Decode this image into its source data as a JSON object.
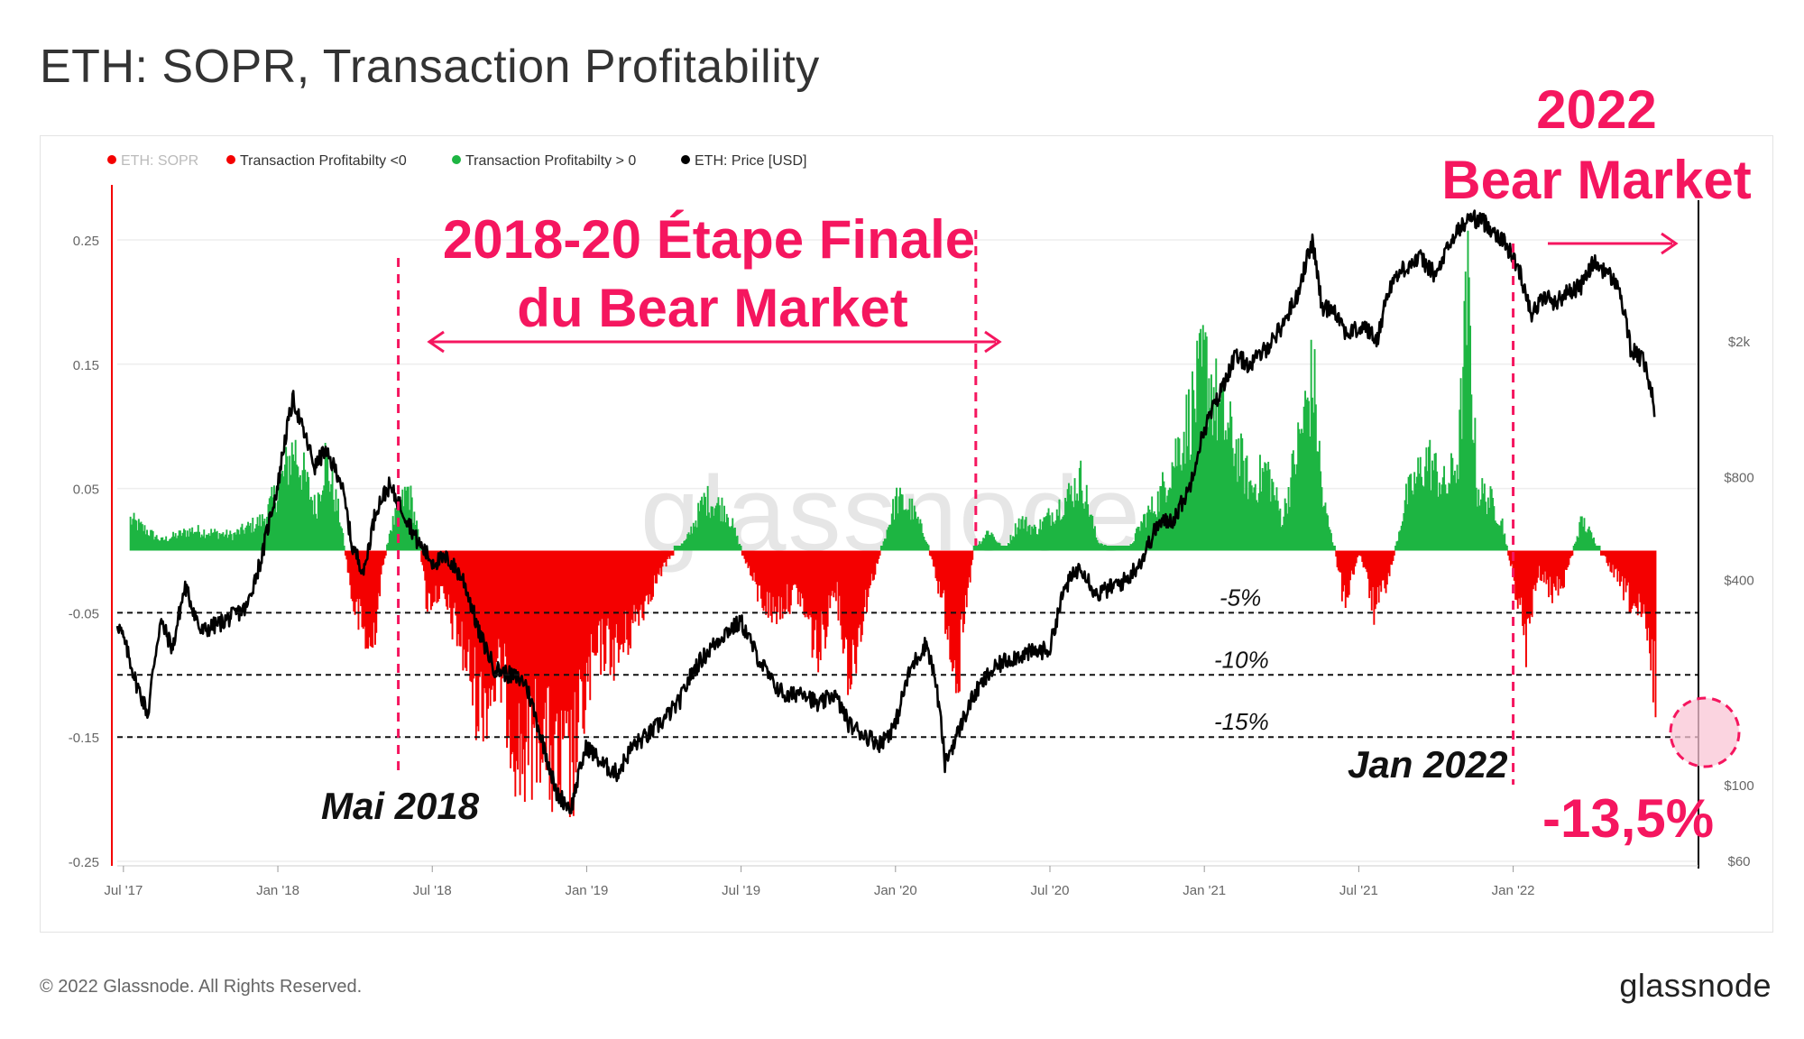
{
  "title": "ETH: SOPR, Transaction Profitability",
  "footer": {
    "copyright": "© 2022 Glassnode. All Rights Reserved.",
    "brand": "glassnode"
  },
  "watermark": "glassnode",
  "colors": {
    "green": "#1db542",
    "red": "#f40000",
    "price": "#000000",
    "accent": "#f5165f",
    "grid": "#eeeeee",
    "axis": "#666666"
  },
  "chart_data": {
    "type": "area",
    "title": "ETH: SOPR, Transaction Profitability",
    "legend": [
      {
        "label": "ETH: SOPR",
        "color": "#f40000",
        "muted": true
      },
      {
        "label": "Transaction Profitabilty <0",
        "color": "#f40000"
      },
      {
        "label": "Transaction Profitabilty > 0",
        "color": "#1db542"
      },
      {
        "label": "ETH: Price [USD]",
        "color": "#000000"
      }
    ],
    "x_ticks": [
      {
        "label": "Jul '17",
        "t": 2017.5
      },
      {
        "label": "Jan '18",
        "t": 2018.0
      },
      {
        "label": "Jul '18",
        "t": 2018.5
      },
      {
        "label": "Jan '19",
        "t": 2019.0
      },
      {
        "label": "Jul '19",
        "t": 2019.5
      },
      {
        "label": "Jan '20",
        "t": 2020.0
      },
      {
        "label": "Jul '20",
        "t": 2020.5
      },
      {
        "label": "Jan '21",
        "t": 2021.0
      },
      {
        "label": "Jul '21",
        "t": 2021.5
      },
      {
        "label": "Jan '22",
        "t": 2022.0
      }
    ],
    "x_range": [
      2017.48,
      2022.6
    ],
    "y_left": {
      "ticks": [
        "0.25",
        "0.15",
        "0.05",
        "-0.05",
        "-0.15",
        "-0.25"
      ],
      "values": [
        0.25,
        0.15,
        0.05,
        -0.05,
        -0.15,
        -0.25
      ],
      "range": [
        -0.25,
        0.3
      ]
    },
    "y_right": {
      "ticks": [
        "$2k",
        "$800",
        "$400",
        "$100",
        "$60"
      ],
      "values": [
        2000,
        800,
        400,
        100,
        60
      ],
      "scale": "log",
      "range": [
        60,
        6000
      ]
    },
    "profitability_keypoints": [
      [
        2017.52,
        0.03
      ],
      [
        2017.62,
        0.01
      ],
      [
        2017.72,
        0.02
      ],
      [
        2017.85,
        0.015
      ],
      [
        2017.95,
        0.03
      ],
      [
        2018.0,
        0.06
      ],
      [
        2018.05,
        0.1
      ],
      [
        2018.12,
        0.04
      ],
      [
        2018.15,
        0.09
      ],
      [
        2018.2,
        0.03
      ],
      [
        2018.24,
        -0.05
      ],
      [
        2018.3,
        -0.1
      ],
      [
        2018.33,
        -0.03
      ],
      [
        2018.36,
        0.02
      ],
      [
        2018.42,
        0.06
      ],
      [
        2018.45,
        0.02
      ],
      [
        2018.48,
        -0.05
      ],
      [
        2018.52,
        -0.04
      ],
      [
        2018.58,
        -0.08
      ],
      [
        2018.65,
        -0.15
      ],
      [
        2018.72,
        -0.12
      ],
      [
        2018.78,
        -0.2
      ],
      [
        2018.85,
        -0.17
      ],
      [
        2018.9,
        -0.22
      ],
      [
        2018.95,
        -0.21
      ],
      [
        2019.0,
        -0.13
      ],
      [
        2019.05,
        -0.09
      ],
      [
        2019.1,
        -0.1
      ],
      [
        2019.15,
        -0.07
      ],
      [
        2019.22,
        -0.03
      ],
      [
        2019.28,
        0.0
      ],
      [
        2019.32,
        0.01
      ],
      [
        2019.38,
        0.05
      ],
      [
        2019.45,
        0.04
      ],
      [
        2019.5,
        0.0
      ],
      [
        2019.55,
        -0.04
      ],
      [
        2019.6,
        -0.06
      ],
      [
        2019.68,
        -0.04
      ],
      [
        2019.75,
        -0.1
      ],
      [
        2019.8,
        -0.03
      ],
      [
        2019.85,
        -0.12
      ],
      [
        2019.9,
        -0.05
      ],
      [
        2019.95,
        0.0
      ],
      [
        2020.0,
        0.05
      ],
      [
        2020.05,
        0.04
      ],
      [
        2020.1,
        0.01
      ],
      [
        2020.15,
        -0.05
      ],
      [
        2020.2,
        -0.12
      ],
      [
        2020.25,
        0.0
      ],
      [
        2020.3,
        0.02
      ],
      [
        2020.35,
        0.0
      ],
      [
        2020.4,
        0.03
      ],
      [
        2020.45,
        0.02
      ],
      [
        2020.55,
        0.05
      ],
      [
        2020.6,
        0.07
      ],
      [
        2020.65,
        0.01
      ],
      [
        2020.7,
        0.0
      ],
      [
        2020.75,
        0.0
      ],
      [
        2020.8,
        0.03
      ],
      [
        2020.85,
        0.05
      ],
      [
        2020.9,
        0.09
      ],
      [
        2020.95,
        0.13
      ],
      [
        2021.0,
        0.18
      ],
      [
        2021.05,
        0.13
      ],
      [
        2021.1,
        0.1
      ],
      [
        2021.15,
        0.06
      ],
      [
        2021.2,
        0.08
      ],
      [
        2021.25,
        0.03
      ],
      [
        2021.3,
        0.1
      ],
      [
        2021.35,
        0.17
      ],
      [
        2021.38,
        0.05
      ],
      [
        2021.42,
        0.0
      ],
      [
        2021.45,
        -0.05
      ],
      [
        2021.5,
        0.0
      ],
      [
        2021.55,
        -0.06
      ],
      [
        2021.6,
        -0.02
      ],
      [
        2021.65,
        0.05
      ],
      [
        2021.72,
        0.09
      ],
      [
        2021.78,
        0.06
      ],
      [
        2021.82,
        0.09
      ],
      [
        2021.85,
        0.25
      ],
      [
        2021.88,
        0.06
      ],
      [
        2021.92,
        0.05
      ],
      [
        2021.96,
        0.03
      ],
      [
        2022.0,
        -0.03
      ],
      [
        2022.04,
        -0.09
      ],
      [
        2022.08,
        -0.02
      ],
      [
        2022.12,
        -0.04
      ],
      [
        2022.16,
        -0.03
      ],
      [
        2022.22,
        0.03
      ],
      [
        2022.26,
        0.01
      ],
      [
        2022.3,
        -0.01
      ],
      [
        2022.36,
        -0.04
      ],
      [
        2022.42,
        -0.07
      ],
      [
        2022.46,
        -0.135
      ]
    ],
    "price_keypoints": [
      [
        2017.48,
        300
      ],
      [
        2017.54,
        200
      ],
      [
        2017.58,
        160
      ],
      [
        2017.62,
        300
      ],
      [
        2017.66,
        250
      ],
      [
        2017.7,
        380
      ],
      [
        2017.75,
        280
      ],
      [
        2017.82,
        300
      ],
      [
        2017.9,
        330
      ],
      [
        2017.95,
        470
      ],
      [
        2018.0,
        750
      ],
      [
        2018.05,
        1350
      ],
      [
        2018.08,
        1100
      ],
      [
        2018.12,
        850
      ],
      [
        2018.15,
        950
      ],
      [
        2018.2,
        800
      ],
      [
        2018.24,
        500
      ],
      [
        2018.28,
        420
      ],
      [
        2018.32,
        650
      ],
      [
        2018.36,
        750
      ],
      [
        2018.4,
        650
      ],
      [
        2018.45,
        520
      ],
      [
        2018.5,
        450
      ],
      [
        2018.55,
        460
      ],
      [
        2018.6,
        400
      ],
      [
        2018.65,
        280
      ],
      [
        2018.7,
        220
      ],
      [
        2018.75,
        210
      ],
      [
        2018.8,
        200
      ],
      [
        2018.85,
        140
      ],
      [
        2018.9,
        95
      ],
      [
        2018.95,
        85
      ],
      [
        2019.0,
        130
      ],
      [
        2019.05,
        115
      ],
      [
        2019.1,
        108
      ],
      [
        2019.15,
        130
      ],
      [
        2019.2,
        140
      ],
      [
        2019.25,
        155
      ],
      [
        2019.3,
        175
      ],
      [
        2019.35,
        220
      ],
      [
        2019.4,
        250
      ],
      [
        2019.45,
        280
      ],
      [
        2019.5,
        300
      ],
      [
        2019.55,
        240
      ],
      [
        2019.6,
        200
      ],
      [
        2019.65,
        180
      ],
      [
        2019.7,
        190
      ],
      [
        2019.75,
        170
      ],
      [
        2019.8,
        185
      ],
      [
        2019.85,
        150
      ],
      [
        2019.9,
        140
      ],
      [
        2019.95,
        132
      ],
      [
        2020.0,
        150
      ],
      [
        2020.05,
        220
      ],
      [
        2020.1,
        260
      ],
      [
        2020.13,
        200
      ],
      [
        2020.16,
        115
      ],
      [
        2020.2,
        140
      ],
      [
        2020.25,
        180
      ],
      [
        2020.3,
        210
      ],
      [
        2020.35,
        230
      ],
      [
        2020.4,
        240
      ],
      [
        2020.45,
        245
      ],
      [
        2020.5,
        250
      ],
      [
        2020.55,
        380
      ],
      [
        2020.6,
        440
      ],
      [
        2020.65,
        360
      ],
      [
        2020.7,
        380
      ],
      [
        2020.75,
        400
      ],
      [
        2020.8,
        460
      ],
      [
        2020.85,
        580
      ],
      [
        2020.9,
        600
      ],
      [
        2020.95,
        730
      ],
      [
        2021.0,
        1100
      ],
      [
        2021.05,
        1400
      ],
      [
        2021.1,
        1800
      ],
      [
        2021.15,
        1700
      ],
      [
        2021.2,
        1900
      ],
      [
        2021.25,
        2200
      ],
      [
        2021.3,
        2700
      ],
      [
        2021.35,
        3900
      ],
      [
        2021.38,
        2500
      ],
      [
        2021.42,
        2500
      ],
      [
        2021.46,
        2100
      ],
      [
        2021.52,
        2200
      ],
      [
        2021.56,
        2000
      ],
      [
        2021.6,
        2900
      ],
      [
        2021.65,
        3300
      ],
      [
        2021.7,
        3500
      ],
      [
        2021.75,
        3100
      ],
      [
        2021.78,
        3600
      ],
      [
        2021.82,
        4200
      ],
      [
        2021.86,
        4600
      ],
      [
        2021.9,
        4500
      ],
      [
        2021.94,
        4200
      ],
      [
        2021.98,
        3800
      ],
      [
        2022.02,
        3200
      ],
      [
        2022.06,
        2400
      ],
      [
        2022.1,
        2700
      ],
      [
        2022.14,
        2600
      ],
      [
        2022.18,
        2800
      ],
      [
        2022.22,
        2900
      ],
      [
        2022.26,
        3400
      ],
      [
        2022.3,
        3200
      ],
      [
        2022.34,
        2900
      ],
      [
        2022.38,
        1900
      ],
      [
        2022.42,
        1750
      ],
      [
        2022.45,
        1400
      ],
      [
        2022.46,
        1050
      ]
    ]
  },
  "annotations": {
    "phase_title_1": "2018-20 Étape Finale",
    "phase_title_2": "du Bear Market",
    "bear_title_1": "2022",
    "bear_title_2": "Bear Market",
    "mai_label": "Mai 2018",
    "jan_label": "Jan 2022",
    "pct_label": "-13,5%",
    "levels": [
      {
        "label": "-5%",
        "value": -0.05
      },
      {
        "label": "-10%",
        "value": -0.1
      },
      {
        "label": "-15%",
        "value": -0.15
      }
    ],
    "markers": {
      "mai": 2018.39,
      "jan20_end": 2020.26,
      "jan22": 2022.0
    }
  }
}
